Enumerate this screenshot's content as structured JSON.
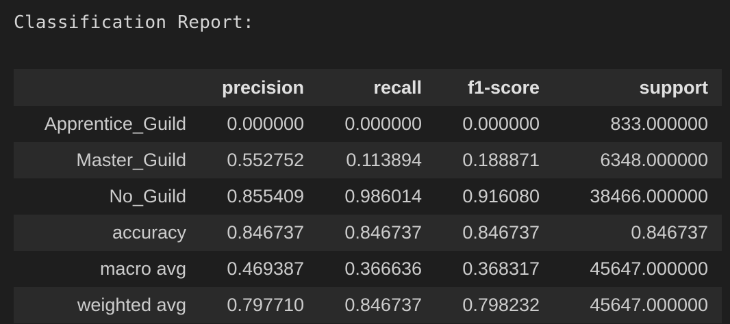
{
  "output": {
    "heading": "Classification Report:"
  },
  "table": {
    "columns": [
      "",
      "precision",
      "recall",
      "f1-score",
      "support"
    ],
    "rows": [
      {
        "label": "Apprentice_Guild",
        "values": [
          "0.000000",
          "0.000000",
          "0.000000",
          "833.000000"
        ]
      },
      {
        "label": "Master_Guild",
        "values": [
          "0.552752",
          "0.113894",
          "0.188871",
          "6348.000000"
        ]
      },
      {
        "label": "No_Guild",
        "values": [
          "0.855409",
          "0.986014",
          "0.916080",
          "38466.000000"
        ]
      },
      {
        "label": "accuracy",
        "values": [
          "0.846737",
          "0.846737",
          "0.846737",
          "0.846737"
        ]
      },
      {
        "label": "macro avg",
        "values": [
          "0.469387",
          "0.366636",
          "0.368317",
          "45647.000000"
        ]
      },
      {
        "label": "weighted avg",
        "values": [
          "0.797710",
          "0.846737",
          "0.798232",
          "45647.000000"
        ]
      }
    ]
  },
  "colors": {
    "background": "#1e1e1e",
    "stripe": "#2a2a2a",
    "text": "#cccccc"
  }
}
